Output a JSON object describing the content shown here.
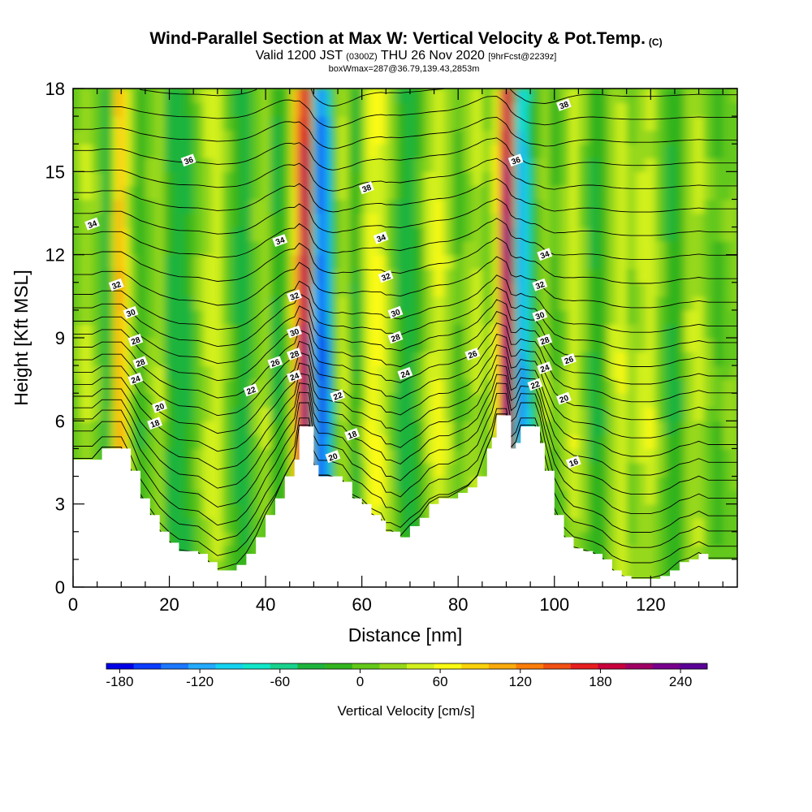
{
  "chart_data": {
    "type": "heatmap",
    "title": "Wind-Parallel Section at Max W: Vertical Velocity & Pot.Temp.",
    "title_mark": "(C)",
    "subtitle": {
      "valid_prefix": "Valid 1200 JST",
      "utc": "(0300Z)",
      "date": "THU 26 Nov 2020",
      "forecast": "[9hrFcst@2239z]"
    },
    "subtitle2": "boxWmax=287@36.79,139.43,2853m",
    "xlabel": "Distance [nm]",
    "ylabel": "Height [Kft MSL]",
    "xlim": [
      0,
      138
    ],
    "ylim": [
      0,
      18
    ],
    "xticks": [
      0,
      20,
      40,
      60,
      80,
      100,
      120
    ],
    "yticks": [
      0,
      3,
      6,
      9,
      12,
      15,
      18
    ],
    "colorbar": {
      "label": "Vertical Velocity [cm/s]",
      "ticks": [
        -180,
        -120,
        -60,
        0,
        60,
        120,
        180,
        240
      ],
      "range": [
        -190,
        260
      ],
      "colors": [
        "#0000e6",
        "#0a3cff",
        "#1c78ff",
        "#24aaff",
        "#14d2f0",
        "#10e6c8",
        "#18d28c",
        "#1eb43c",
        "#32b41e",
        "#64c81a",
        "#96d81a",
        "#d2f01e",
        "#fafa14",
        "#fad20a",
        "#faaa0a",
        "#fa7d0a",
        "#f05014",
        "#e61e1e",
        "#c8003c",
        "#a00064",
        "#78008c",
        "#5a0096"
      ]
    },
    "theta_contour_labels": [
      {
        "label": "38",
        "x": 102,
        "y": 17.4
      },
      {
        "label": "36",
        "x": 24,
        "y": 15.4
      },
      {
        "label": "36",
        "x": 92,
        "y": 15.4
      },
      {
        "label": "38",
        "x": 61,
        "y": 14.4
      },
      {
        "label": "34",
        "x": 4,
        "y": 13.1
      },
      {
        "label": "34",
        "x": 43,
        "y": 12.5
      },
      {
        "label": "34",
        "x": 64,
        "y": 12.6
      },
      {
        "label": "34",
        "x": 98,
        "y": 12.0
      },
      {
        "label": "32",
        "x": 9,
        "y": 10.9
      },
      {
        "label": "32",
        "x": 46,
        "y": 10.5
      },
      {
        "label": "32",
        "x": 65,
        "y": 11.2
      },
      {
        "label": "32",
        "x": 97,
        "y": 10.9
      },
      {
        "label": "30",
        "x": 12,
        "y": 9.9
      },
      {
        "label": "30",
        "x": 46,
        "y": 9.2
      },
      {
        "label": "30",
        "x": 67,
        "y": 9.9
      },
      {
        "label": "30",
        "x": 97,
        "y": 9.8
      },
      {
        "label": "28",
        "x": 13,
        "y": 8.9
      },
      {
        "label": "28",
        "x": 46,
        "y": 8.4
      },
      {
        "label": "28",
        "x": 67,
        "y": 9.0
      },
      {
        "label": "28",
        "x": 98,
        "y": 8.9
      },
      {
        "label": "28",
        "x": 14,
        "y": 8.1
      },
      {
        "label": "26",
        "x": 42,
        "y": 8.1
      },
      {
        "label": "26",
        "x": 83,
        "y": 8.4
      },
      {
        "label": "26",
        "x": 103,
        "y": 8.2
      },
      {
        "label": "24",
        "x": 13,
        "y": 7.5
      },
      {
        "label": "24",
        "x": 46,
        "y": 7.6
      },
      {
        "label": "24",
        "x": 69,
        "y": 7.7
      },
      {
        "label": "24",
        "x": 98,
        "y": 7.9
      },
      {
        "label": "22",
        "x": 37,
        "y": 7.1
      },
      {
        "label": "22",
        "x": 55,
        "y": 6.9
      },
      {
        "label": "22",
        "x": 96,
        "y": 7.3
      },
      {
        "label": "20",
        "x": 18,
        "y": 6.5
      },
      {
        "label": "20",
        "x": 102,
        "y": 6.8
      },
      {
        "label": "18",
        "x": 17,
        "y": 5.9
      },
      {
        "label": "18",
        "x": 58,
        "y": 5.5
      },
      {
        "label": "20",
        "x": 54,
        "y": 4.7
      },
      {
        "label": "16",
        "x": 104,
        "y": 4.5
      }
    ],
    "terrain_kft": [
      [
        0,
        4.6
      ],
      [
        4,
        4.6
      ],
      [
        6,
        5.0
      ],
      [
        10,
        5.0
      ],
      [
        12,
        4.2
      ],
      [
        14,
        3.2
      ],
      [
        16,
        2.6
      ],
      [
        18,
        2.0
      ],
      [
        20,
        1.6
      ],
      [
        22,
        1.3
      ],
      [
        26,
        1.2
      ],
      [
        28,
        0.9
      ],
      [
        30,
        0.6
      ],
      [
        34,
        0.8
      ],
      [
        36,
        1.2
      ],
      [
        38,
        1.8
      ],
      [
        40,
        2.6
      ],
      [
        42,
        3.2
      ],
      [
        44,
        4.0
      ],
      [
        46,
        4.6
      ],
      [
        47,
        5.8
      ],
      [
        49,
        5.8
      ],
      [
        50,
        4.4
      ],
      [
        51,
        4.0
      ],
      [
        53,
        4.0
      ],
      [
        56,
        3.8
      ],
      [
        58,
        3.2
      ],
      [
        60,
        3.0
      ],
      [
        62,
        2.6
      ],
      [
        64,
        2.4
      ],
      [
        65,
        2.0
      ],
      [
        66,
        2.0
      ],
      [
        68,
        1.8
      ],
      [
        70,
        2.2
      ],
      [
        72,
        2.5
      ],
      [
        74,
        3.0
      ],
      [
        76,
        3.2
      ],
      [
        78,
        3.2
      ],
      [
        80,
        3.4
      ],
      [
        82,
        3.6
      ],
      [
        84,
        4.0
      ],
      [
        86,
        5.0
      ],
      [
        87,
        5.4
      ],
      [
        88,
        6.2
      ],
      [
        90,
        6.2
      ],
      [
        91,
        5.0
      ],
      [
        92,
        5.2
      ],
      [
        93,
        5.8
      ],
      [
        96,
        5.8
      ],
      [
        97,
        5.2
      ],
      [
        98,
        4.2
      ],
      [
        100,
        2.6
      ],
      [
        102,
        1.8
      ],
      [
        104,
        1.4
      ],
      [
        106,
        1.3
      ],
      [
        108,
        1.2
      ],
      [
        110,
        1.0
      ],
      [
        112,
        0.6
      ],
      [
        114,
        0.4
      ],
      [
        116,
        0.3
      ],
      [
        120,
        0.3
      ],
      [
        122,
        0.4
      ],
      [
        124,
        0.6
      ],
      [
        126,
        0.9
      ],
      [
        128,
        1.0
      ],
      [
        130,
        1.2
      ],
      [
        132,
        1.0
      ],
      [
        134,
        1.0
      ],
      [
        136,
        1.0
      ],
      [
        138,
        1.0
      ]
    ],
    "w_columns": [
      {
        "x": 0,
        "w": 10
      },
      {
        "x": 3,
        "w": 35
      },
      {
        "x": 5,
        "w": 10
      },
      {
        "x": 7,
        "w": -40
      },
      {
        "x": 8,
        "w": 10
      },
      {
        "x": 9,
        "w": 90
      },
      {
        "x": 10,
        "w": 120
      },
      {
        "x": 11,
        "w": 70
      },
      {
        "x": 12,
        "w": 20
      },
      {
        "x": 14,
        "w": -20
      },
      {
        "x": 16,
        "w": 10
      },
      {
        "x": 18,
        "w": 30
      },
      {
        "x": 20,
        "w": -30
      },
      {
        "x": 22,
        "w": -40
      },
      {
        "x": 24,
        "w": -30
      },
      {
        "x": 26,
        "w": 10
      },
      {
        "x": 28,
        "w": 40
      },
      {
        "x": 30,
        "w": 50
      },
      {
        "x": 32,
        "w": 10
      },
      {
        "x": 34,
        "w": -30
      },
      {
        "x": 36,
        "w": -40
      },
      {
        "x": 38,
        "w": 10
      },
      {
        "x": 40,
        "w": 30
      },
      {
        "x": 42,
        "w": -30
      },
      {
        "x": 44,
        "w": -20
      },
      {
        "x": 45,
        "w": 30
      },
      {
        "x": 46,
        "w": 90
      },
      {
        "x": 47,
        "w": 160
      },
      {
        "x": 48,
        "w": 230
      },
      {
        "x": 49,
        "w": 190
      },
      {
        "x": 50,
        "w": -70
      },
      {
        "x": 51,
        "w": -150
      },
      {
        "x": 52,
        "w": -180
      },
      {
        "x": 53,
        "w": -110
      },
      {
        "x": 54,
        "w": -40
      },
      {
        "x": 55,
        "w": 20
      },
      {
        "x": 56,
        "w": 40
      },
      {
        "x": 57,
        "w": 30
      },
      {
        "x": 58,
        "w": -20
      },
      {
        "x": 59,
        "w": -30
      },
      {
        "x": 60,
        "w": 10
      },
      {
        "x": 61,
        "w": 50
      },
      {
        "x": 62,
        "w": 70
      },
      {
        "x": 64,
        "w": 60
      },
      {
        "x": 66,
        "w": 20
      },
      {
        "x": 68,
        "w": -30
      },
      {
        "x": 70,
        "w": -40
      },
      {
        "x": 72,
        "w": -10
      },
      {
        "x": 74,
        "w": 40
      },
      {
        "x": 76,
        "w": 60
      },
      {
        "x": 78,
        "w": 30
      },
      {
        "x": 80,
        "w": -10
      },
      {
        "x": 82,
        "w": 20
      },
      {
        "x": 84,
        "w": 40
      },
      {
        "x": 86,
        "w": 10
      },
      {
        "x": 88,
        "w": 60
      },
      {
        "x": 89,
        "w": 170
      },
      {
        "x": 90,
        "w": 260
      },
      {
        "x": 91,
        "w": 190
      },
      {
        "x": 92,
        "w": -60
      },
      {
        "x": 93,
        "w": -130
      },
      {
        "x": 94,
        "w": -110
      },
      {
        "x": 95,
        "w": -60
      },
      {
        "x": 96,
        "w": -20
      },
      {
        "x": 97,
        "w": 10
      },
      {
        "x": 98,
        "w": 30
      },
      {
        "x": 100,
        "w": -10
      },
      {
        "x": 102,
        "w": 20
      },
      {
        "x": 104,
        "w": 50
      },
      {
        "x": 106,
        "w": 20
      },
      {
        "x": 108,
        "w": -30
      },
      {
        "x": 110,
        "w": -20
      },
      {
        "x": 112,
        "w": 30
      },
      {
        "x": 114,
        "w": 50
      },
      {
        "x": 116,
        "w": 20
      },
      {
        "x": 118,
        "w": 40
      },
      {
        "x": 120,
        "w": 50
      },
      {
        "x": 122,
        "w": 10
      },
      {
        "x": 124,
        "w": -30
      },
      {
        "x": 126,
        "w": -20
      },
      {
        "x": 128,
        "w": 30
      },
      {
        "x": 130,
        "w": 40
      },
      {
        "x": 132,
        "w": 10
      },
      {
        "x": 134,
        "w": -10
      },
      {
        "x": 136,
        "w": 10
      },
      {
        "x": 138,
        "w": 20
      }
    ],
    "grid": false
  }
}
